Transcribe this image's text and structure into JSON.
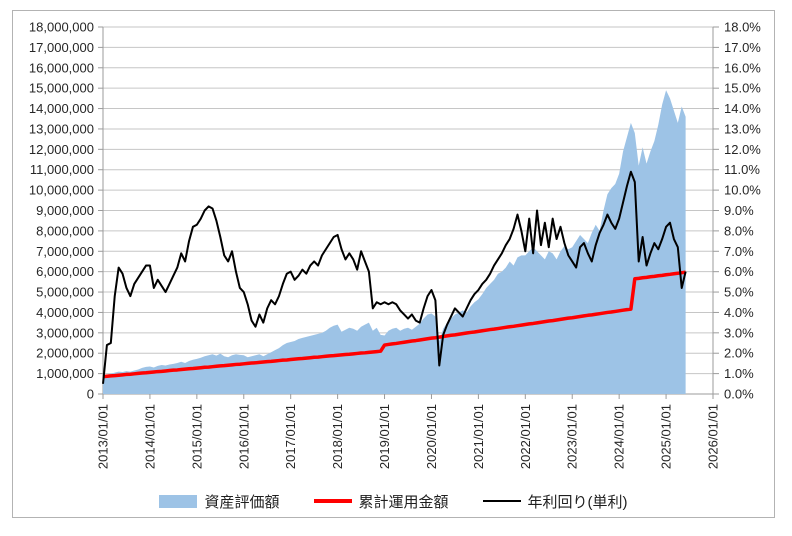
{
  "chart_data": {
    "type": "combo",
    "title": "",
    "grid": "horizontal",
    "legend_position": "bottom",
    "x_axis": {
      "type": "date",
      "tick_labels": [
        "2013/01/01",
        "2014/01/01",
        "2015/01/01",
        "2016/01/01",
        "2017/01/01",
        "2018/01/01",
        "2019/01/01",
        "2020/01/01",
        "2021/01/01",
        "2022/01/01",
        "2023/01/01",
        "2024/01/01",
        "2025/01/01",
        "2026/01/01"
      ],
      "label_rotation_deg": -90
    },
    "y_axis_left": {
      "min": 0,
      "max": 18000000,
      "step": 1000000,
      "unit": "JPY",
      "tick_labels": [
        "18,000,000",
        "17,000,000",
        "16,000,000",
        "15,000,000",
        "14,000,000",
        "13,000,000",
        "12,000,000",
        "11,000,000",
        "10,000,000",
        "9,000,000",
        "8,000,000",
        "7,000,000",
        "6,000,000",
        "5,000,000",
        "4,000,000",
        "3,000,000",
        "2,000,000",
        "1,000,000",
        "0"
      ]
    },
    "y_axis_right": {
      "min": 0,
      "max": 18,
      "step": 1,
      "unit": "percent",
      "tick_labels": [
        "18.0%",
        "17.0%",
        "16.0%",
        "15.0%",
        "14.0%",
        "13.0%",
        "12.0%",
        "11.0%",
        "10.0%",
        "9.0%",
        "8.0%",
        "7.0%",
        "6.0%",
        "5.0%",
        "4.0%",
        "3.0%",
        "2.0%",
        "1.0%",
        "0.0%"
      ]
    },
    "series_start": "2013/01",
    "series_end": "2025/06",
    "series_frequency": "monthly",
    "series": [
      {
        "name": "資産評価額",
        "type": "area",
        "axis": "left",
        "unit": "million JPY",
        "color": "#9DC3E6",
        "values": [
          0.9,
          0.95,
          1.0,
          1.05,
          1.1,
          1.08,
          1.12,
          1.1,
          1.15,
          1.2,
          1.28,
          1.33,
          1.35,
          1.3,
          1.38,
          1.42,
          1.4,
          1.45,
          1.48,
          1.52,
          1.58,
          1.52,
          1.62,
          1.68,
          1.72,
          1.78,
          1.85,
          1.9,
          1.95,
          1.88,
          1.98,
          1.85,
          1.8,
          1.9,
          1.95,
          1.92,
          1.9,
          1.8,
          1.85,
          1.9,
          1.95,
          1.85,
          1.95,
          2.05,
          2.15,
          2.25,
          2.4,
          2.5,
          2.55,
          2.6,
          2.7,
          2.75,
          2.8,
          2.85,
          2.9,
          2.95,
          3.0,
          3.1,
          3.25,
          3.35,
          3.4,
          3.05,
          3.15,
          3.25,
          3.2,
          3.1,
          3.3,
          3.4,
          3.5,
          3.1,
          3.25,
          2.9,
          2.87,
          3.1,
          3.2,
          3.25,
          3.1,
          3.2,
          3.25,
          3.15,
          3.3,
          3.45,
          3.7,
          3.9,
          3.95,
          3.8,
          2.6,
          3.2,
          3.5,
          3.7,
          3.9,
          4.0,
          4.1,
          4.0,
          4.3,
          4.5,
          4.65,
          4.9,
          5.2,
          5.4,
          5.6,
          5.9,
          6.0,
          6.2,
          6.5,
          6.3,
          6.7,
          6.8,
          6.8,
          7.0,
          7.2,
          7.0,
          6.8,
          6.6,
          7.0,
          6.9,
          6.6,
          7.0,
          7.25,
          7.1,
          7.2,
          7.5,
          7.8,
          7.6,
          7.4,
          7.9,
          8.3,
          8.0,
          9.0,
          9.8,
          10.1,
          10.3,
          10.8,
          11.9,
          12.6,
          13.3,
          12.8,
          11.2,
          12.1,
          11.3,
          11.9,
          12.4,
          13.2,
          14.2,
          14.9,
          14.5,
          13.9,
          13.3,
          14.1,
          13.6
        ]
      },
      {
        "name": "累計運用金額",
        "type": "line",
        "axis": "left",
        "unit": "million JPY",
        "color": "#FF0000",
        "stroke_width": 3.5,
        "values": [
          0.85,
          0.87,
          0.89,
          0.9,
          0.92,
          0.94,
          0.96,
          0.97,
          0.99,
          1.01,
          1.03,
          1.04,
          1.06,
          1.08,
          1.1,
          1.11,
          1.13,
          1.15,
          1.17,
          1.18,
          1.2,
          1.22,
          1.24,
          1.25,
          1.27,
          1.29,
          1.31,
          1.32,
          1.34,
          1.36,
          1.38,
          1.39,
          1.41,
          1.43,
          1.45,
          1.46,
          1.48,
          1.5,
          1.52,
          1.53,
          1.55,
          1.57,
          1.59,
          1.6,
          1.62,
          1.64,
          1.66,
          1.67,
          1.69,
          1.71,
          1.73,
          1.74,
          1.76,
          1.78,
          1.8,
          1.81,
          1.83,
          1.85,
          1.87,
          1.88,
          1.9,
          1.92,
          1.94,
          1.95,
          1.97,
          1.99,
          2.01,
          2.02,
          2.04,
          2.06,
          2.08,
          2.1,
          2.4,
          2.43,
          2.46,
          2.48,
          2.51,
          2.54,
          2.57,
          2.6,
          2.62,
          2.65,
          2.68,
          2.71,
          2.74,
          2.76,
          2.79,
          2.82,
          2.85,
          2.88,
          2.9,
          2.93,
          2.96,
          2.99,
          3.02,
          3.04,
          3.07,
          3.1,
          3.13,
          3.16,
          3.18,
          3.21,
          3.24,
          3.27,
          3.3,
          3.32,
          3.35,
          3.38,
          3.41,
          3.44,
          3.46,
          3.49,
          3.52,
          3.55,
          3.58,
          3.6,
          3.63,
          3.66,
          3.69,
          3.72,
          3.74,
          3.77,
          3.8,
          3.83,
          3.86,
          3.88,
          3.91,
          3.94,
          3.97,
          4.0,
          4.02,
          4.05,
          4.08,
          4.11,
          4.14,
          4.16,
          5.65,
          5.67,
          5.7,
          5.72,
          5.75,
          5.77,
          5.8,
          5.82,
          5.85,
          5.87,
          5.9,
          5.92,
          5.95,
          5.97
        ]
      },
      {
        "name": "年利回り(単利)",
        "type": "line",
        "axis": "right",
        "unit": "percent",
        "color": "#000000",
        "stroke_width": 2,
        "values": [
          0.5,
          2.4,
          2.5,
          4.8,
          6.2,
          5.9,
          5.2,
          4.8,
          5.4,
          5.7,
          6.0,
          6.3,
          6.3,
          5.2,
          5.6,
          5.3,
          5.0,
          5.4,
          5.8,
          6.2,
          6.9,
          6.5,
          7.5,
          8.2,
          8.3,
          8.6,
          9.0,
          9.2,
          9.1,
          8.5,
          7.7,
          6.8,
          6.5,
          7.0,
          6.0,
          5.2,
          5.0,
          4.4,
          3.6,
          3.3,
          3.9,
          3.5,
          4.2,
          4.6,
          4.4,
          4.8,
          5.4,
          5.9,
          6.0,
          5.6,
          5.8,
          6.1,
          5.9,
          6.3,
          6.5,
          6.3,
          6.8,
          7.1,
          7.4,
          7.7,
          7.8,
          7.1,
          6.6,
          6.9,
          6.6,
          6.1,
          7.0,
          6.5,
          6.0,
          4.2,
          4.5,
          4.4,
          4.5,
          4.4,
          4.5,
          4.4,
          4.1,
          3.9,
          3.7,
          3.9,
          3.6,
          3.5,
          4.2,
          4.8,
          5.1,
          4.6,
          1.4,
          2.9,
          3.4,
          3.8,
          4.2,
          4.0,
          3.8,
          4.2,
          4.6,
          4.9,
          5.1,
          5.4,
          5.6,
          5.9,
          6.3,
          6.6,
          6.9,
          7.3,
          7.6,
          8.1,
          8.8,
          8.0,
          7.0,
          8.6,
          6.9,
          9.0,
          7.3,
          8.4,
          7.2,
          8.6,
          7.6,
          8.2,
          7.4,
          6.8,
          6.5,
          6.2,
          7.2,
          7.4,
          6.9,
          6.5,
          7.3,
          7.9,
          8.3,
          8.8,
          8.4,
          8.1,
          8.6,
          9.4,
          10.2,
          10.9,
          10.4,
          6.5,
          7.7,
          6.3,
          6.9,
          7.4,
          7.1,
          7.6,
          8.2,
          8.4,
          7.6,
          7.2,
          5.2,
          6.0
        ]
      }
    ]
  },
  "legend": {
    "items": [
      {
        "label": "資産評価額",
        "swatch": "area",
        "color": "#9DC3E6"
      },
      {
        "label": "累計運用金額",
        "swatch": "thick-line",
        "color": "#FF0000"
      },
      {
        "label": "年利回り(単利)",
        "swatch": "thin-line",
        "color": "#000000"
      }
    ]
  },
  "style": {
    "background": "#FFFFFF",
    "border_color": "#B3B3B3",
    "grid_color": "#C6C6C6",
    "axis_color": "#9B9B9B",
    "text_color": "#262626"
  }
}
